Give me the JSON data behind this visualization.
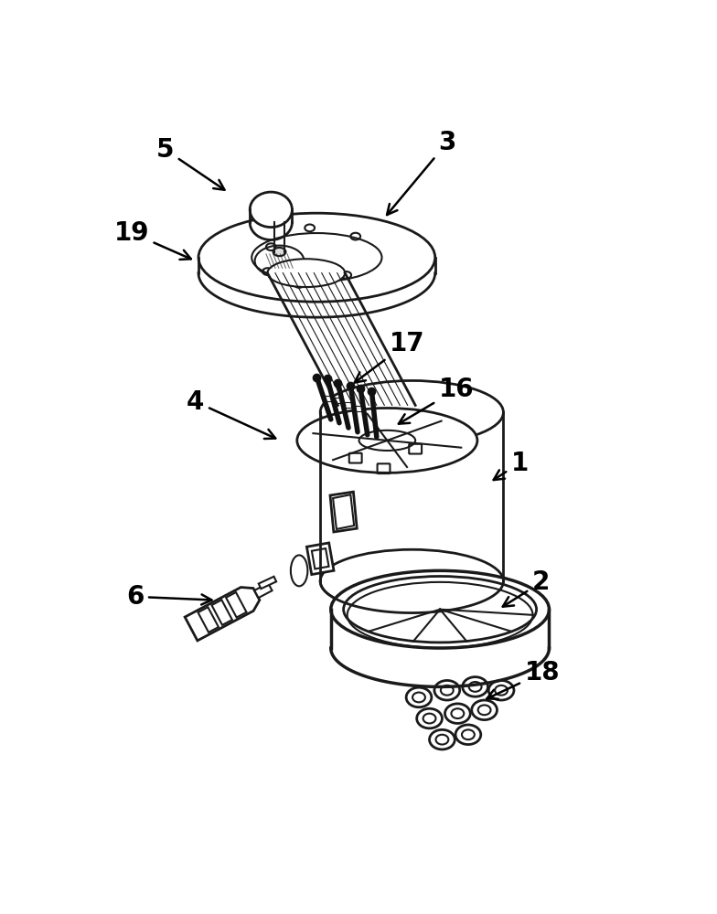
{
  "bg_color": "#ffffff",
  "lc": "#1a1a1a",
  "figsize": [
    7.84,
    10.0
  ],
  "dpi": 100,
  "annotations": [
    [
      "5",
      105,
      57,
      195,
      118
    ],
    [
      "19",
      57,
      175,
      148,
      215
    ],
    [
      "3",
      505,
      47,
      415,
      155
    ],
    [
      "4",
      148,
      415,
      268,
      470
    ],
    [
      "17",
      448,
      332,
      368,
      392
    ],
    [
      "16",
      518,
      398,
      430,
      450
    ],
    [
      "1",
      608,
      502,
      565,
      530
    ],
    [
      "2",
      638,
      672,
      578,
      710
    ],
    [
      "18",
      640,
      800,
      555,
      840
    ],
    [
      "6",
      62,
      692,
      178,
      697
    ]
  ]
}
